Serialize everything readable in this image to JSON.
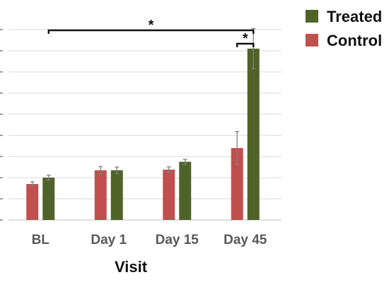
{
  "chart_data": {
    "type": "bar",
    "title": "",
    "xlabel": "Visit",
    "ylabel": "",
    "categories": [
      "BL",
      "Day 1",
      "Day 15",
      "Day 45"
    ],
    "series": [
      {
        "name": "Control",
        "color": "#c0504d",
        "values": [
          1.7,
          2.35,
          2.38,
          3.4
        ],
        "errors": [
          0.1,
          0.17,
          0.13,
          0.78
        ]
      },
      {
        "name": "Treated",
        "color": "#4f6228",
        "values": [
          2.0,
          2.35,
          2.75,
          8.1
        ],
        "errors": [
          0.12,
          0.15,
          0.12,
          0.95
        ]
      }
    ],
    "ylim": [
      0,
      9
    ],
    "grid": true,
    "legend": {
      "position": "top-right",
      "order": [
        "Treated",
        "Control"
      ]
    },
    "significance": [
      {
        "label": "*",
        "from": "BL",
        "to": "Day 45"
      },
      {
        "label": "*",
        "within": "Day 45"
      }
    ]
  }
}
